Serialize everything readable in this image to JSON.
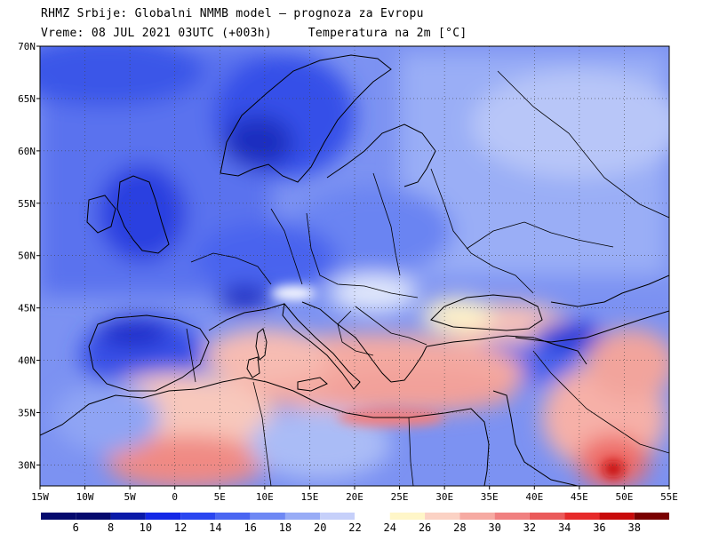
{
  "header": {
    "line1": "RHMZ Srbije: Globalni NMMB model — prognoza za Evropu",
    "line2_left": "Vreme: 08 JUL 2021 03UTC (+003h)",
    "line2_right": "Temperatura na 2m [°C]"
  },
  "map": {
    "lon_range": [
      -15,
      55
    ],
    "lat_range": [
      28,
      70
    ],
    "lon_ticks": [
      "15W",
      "10W",
      "5W",
      "0",
      "5E",
      "10E",
      "15E",
      "20E",
      "25E",
      "30E",
      "35E",
      "40E",
      "45E",
      "50E",
      "55E"
    ],
    "lat_ticks": [
      "30N",
      "35N",
      "40N",
      "45N",
      "50N",
      "55N",
      "60N",
      "65N",
      "70N"
    ],
    "grid": true
  },
  "colorbar": {
    "labels": [
      "6",
      "8",
      "10",
      "12",
      "14",
      "16",
      "18",
      "20",
      "22",
      "24",
      "26",
      "28",
      "30",
      "32",
      "34",
      "36",
      "38"
    ],
    "colors": [
      "#050a6e",
      "#0a1aa8",
      "#1428e6",
      "#2a46f0",
      "#4a66f2",
      "#6e88f4",
      "#98acf6",
      "#c6d0fa",
      "#ffffff",
      "#fff6c8",
      "#fbd2c4",
      "#f6aaa2",
      "#f08080",
      "#ea5a5a",
      "#e62a2a",
      "#c80a0a",
      "#7a0000"
    ]
  }
}
